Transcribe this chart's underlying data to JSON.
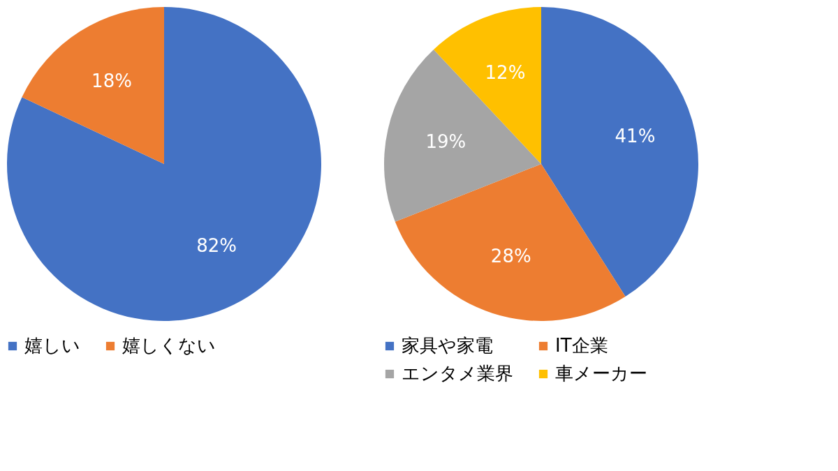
{
  "chart_data": [
    {
      "type": "pie",
      "categories": [
        "嬉しい",
        "嬉しくない"
      ],
      "values": [
        82,
        18
      ],
      "colors": [
        "#4472c4",
        "#ed7d31"
      ],
      "value_labels": [
        "82%",
        "18%"
      ],
      "legend": "bottom"
    },
    {
      "type": "pie",
      "categories": [
        "家具や家電",
        "IT企業",
        "エンタメ業界",
        "車メーカー"
      ],
      "values": [
        41,
        28,
        19,
        12
      ],
      "colors": [
        "#4472c4",
        "#ed7d31",
        "#a5a5a5",
        "#ffc000"
      ],
      "value_labels": [
        "41%",
        "28%",
        "19%",
        "12%"
      ],
      "legend": "bottom"
    }
  ]
}
